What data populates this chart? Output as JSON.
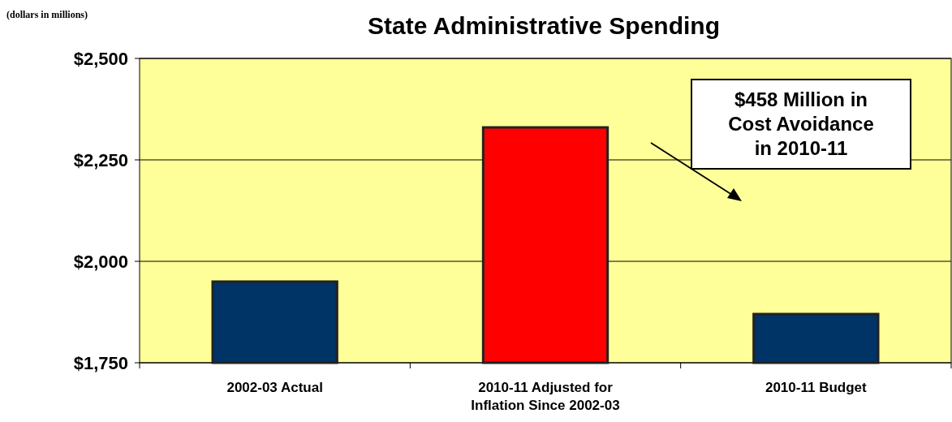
{
  "chart_data": {
    "type": "bar",
    "title": "State Administrative Spending",
    "subtitle": "(dollars in millions)",
    "categories": [
      "2002-03 Actual",
      "2010-11 Adjusted for Inflation Since 2002-03",
      "2010-11 Budget"
    ],
    "values": [
      1950,
      2330,
      1870
    ],
    "colors": [
      "#003366",
      "#ff0000",
      "#003366"
    ],
    "ylim": [
      1750,
      2500
    ],
    "yticks": [
      {
        "value": 1750,
        "label": "$1,750"
      },
      {
        "value": 2000,
        "label": "$2,000"
      },
      {
        "value": 2250,
        "label": "$2,250"
      },
      {
        "value": 2500,
        "label": "$2,500"
      }
    ],
    "grid": "y",
    "annotations": [
      "$458 Million in Cost Avoidance in 2010-11"
    ]
  }
}
